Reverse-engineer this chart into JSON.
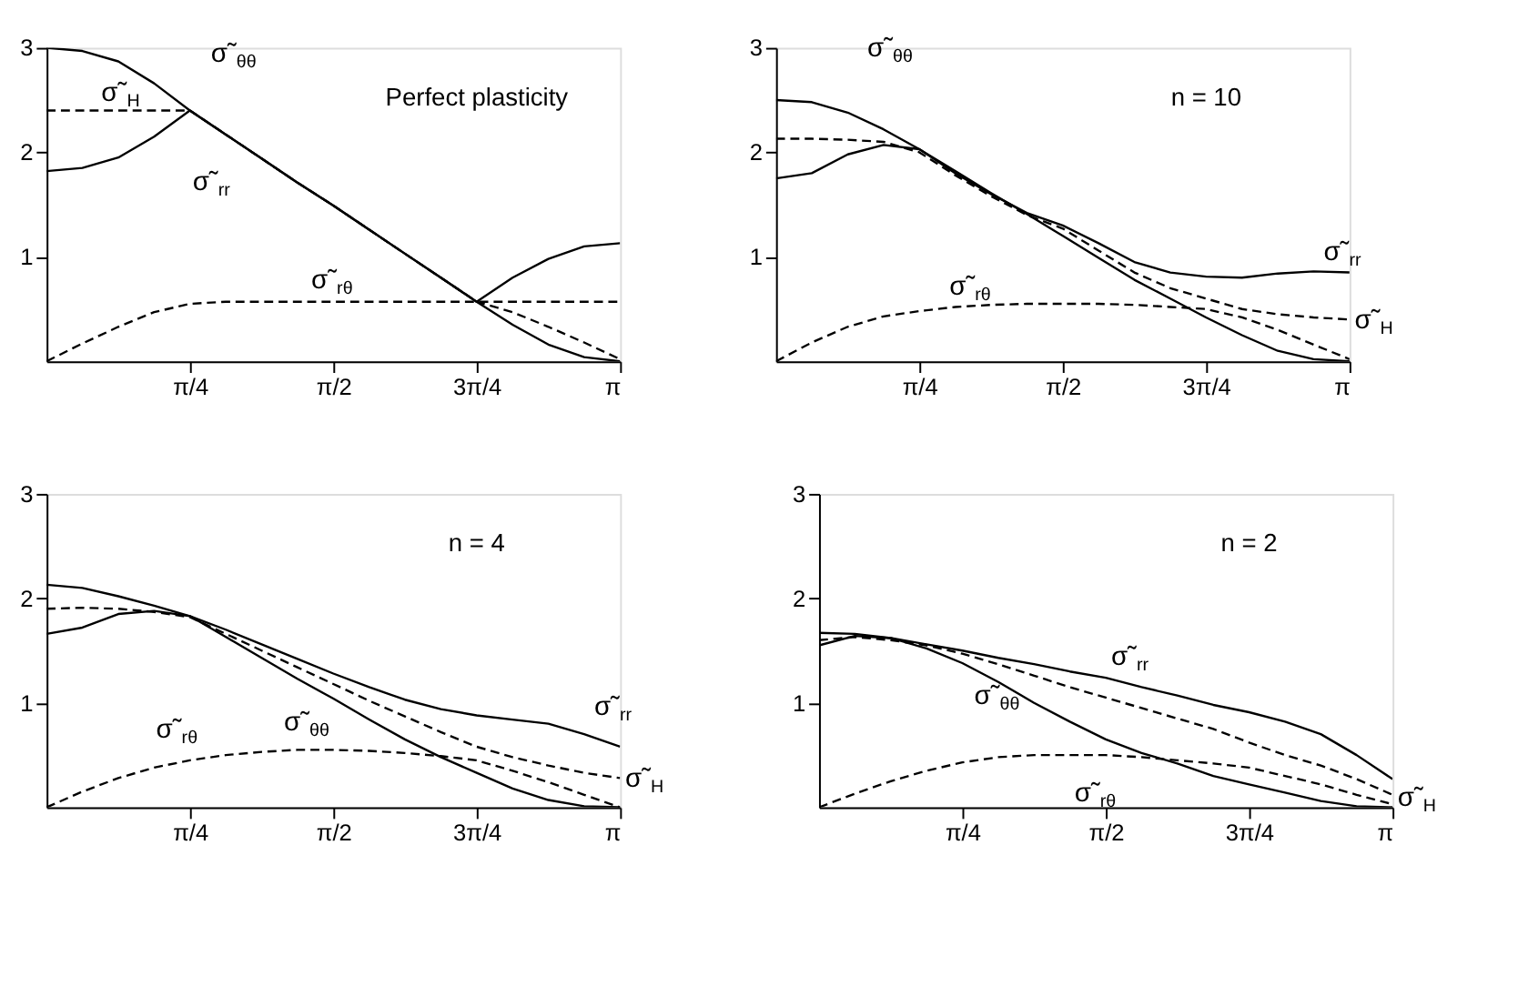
{
  "chart_data": [
    {
      "type": "line",
      "x": [
        0,
        0.196,
        0.393,
        0.589,
        0.785,
        0.982,
        1.178,
        1.374,
        1.571,
        1.767,
        1.963,
        2.16,
        2.356,
        2.553,
        2.749,
        2.945,
        3.142
      ],
      "xlim": [
        0,
        3.142
      ],
      "ylim": [
        0,
        3
      ],
      "xticks": [
        {
          "value": 0.785,
          "label": "π/4"
        },
        {
          "value": 1.571,
          "label": "π/2"
        },
        {
          "value": 2.356,
          "label": "3π/4"
        },
        {
          "value": 3.142,
          "label": "π"
        }
      ],
      "yticks": [
        1,
        2,
        3
      ],
      "grid": false,
      "annotations": [
        "Perfect plasticity"
      ],
      "series": [
        {
          "name": "σ̃$_{θθ}$",
          "color": "#000000",
          "line_style": "solid",
          "values": [
            3.0,
            2.97,
            2.87,
            2.66,
            2.4,
            2.17,
            1.94,
            1.71,
            1.49,
            1.26,
            1.03,
            0.8,
            0.57,
            0.35,
            0.16,
            0.04,
            0.0
          ]
        },
        {
          "name": "σ̃$_{rr}$",
          "color": "#000000",
          "line_style": "solid",
          "values": [
            1.82,
            1.85,
            1.95,
            2.15,
            2.4,
            2.17,
            1.94,
            1.71,
            1.49,
            1.26,
            1.03,
            0.8,
            0.57,
            0.8,
            0.98,
            1.1,
            1.13
          ]
        },
        {
          "name": "σ̃$_{H}$",
          "color": "#000000",
          "line_style": "dashed",
          "values": [
            2.4,
            2.4,
            2.4,
            2.4,
            2.4,
            2.17,
            1.94,
            1.71,
            1.49,
            1.26,
            1.03,
            0.8,
            0.57,
            0.47,
            0.33,
            0.18,
            0.02
          ]
        },
        {
          "name": "σ̃$_{rθ}$",
          "color": "#000000",
          "line_style": "dashed",
          "values": [
            0,
            0.17,
            0.33,
            0.47,
            0.55,
            0.57,
            0.57,
            0.57,
            0.57,
            0.57,
            0.57,
            0.57,
            0.57,
            0.57,
            0.57,
            0.57,
            0.57
          ]
        }
      ]
    },
    {
      "type": "line",
      "x": [
        0,
        0.196,
        0.393,
        0.589,
        0.785,
        0.982,
        1.178,
        1.374,
        1.571,
        1.767,
        1.963,
        2.16,
        2.356,
        2.553,
        2.749,
        2.945,
        3.142
      ],
      "xlim": [
        0,
        3.142
      ],
      "ylim": [
        0,
        3
      ],
      "xticks": [
        {
          "value": 0.785,
          "label": "π/4"
        },
        {
          "value": 1.571,
          "label": "π/2"
        },
        {
          "value": 2.356,
          "label": "3π/4"
        },
        {
          "value": 3.142,
          "label": "π"
        }
      ],
      "yticks": [
        1,
        2,
        3
      ],
      "grid": false,
      "annotations": [
        "n = 10"
      ],
      "series": [
        {
          "name": "σ̃$_{θθ}$",
          "color": "#000000",
          "line_style": "solid",
          "values": [
            2.5,
            2.48,
            2.38,
            2.22,
            2.03,
            1.82,
            1.61,
            1.41,
            1.2,
            0.99,
            0.78,
            0.6,
            0.42,
            0.25,
            0.1,
            0.02,
            0.0
          ]
        },
        {
          "name": "σ̃$_{rr}$",
          "color": "#000000",
          "line_style": "solid",
          "values": [
            1.75,
            1.8,
            1.98,
            2.07,
            2.03,
            1.8,
            1.6,
            1.42,
            1.3,
            1.13,
            0.95,
            0.85,
            0.81,
            0.8,
            0.84,
            0.86,
            0.85
          ]
        },
        {
          "name": "σ̃$_{H}$",
          "color": "#000000",
          "line_style": "dashed",
          "values": [
            2.13,
            2.13,
            2.12,
            2.1,
            2.0,
            1.78,
            1.58,
            1.4,
            1.27,
            1.06,
            0.85,
            0.7,
            0.6,
            0.5,
            0.45,
            0.42,
            0.4
          ]
        },
        {
          "name": "σ̃$_{rθ}$",
          "color": "#000000",
          "line_style": "dashed",
          "values": [
            0,
            0.18,
            0.33,
            0.43,
            0.48,
            0.52,
            0.54,
            0.55,
            0.55,
            0.55,
            0.54,
            0.52,
            0.5,
            0.42,
            0.3,
            0.16,
            0.02
          ]
        }
      ]
    },
    {
      "type": "line",
      "x": [
        0,
        0.196,
        0.393,
        0.589,
        0.785,
        0.982,
        1.178,
        1.374,
        1.571,
        1.767,
        1.963,
        2.16,
        2.356,
        2.553,
        2.749,
        2.945,
        3.142
      ],
      "xlim": [
        0,
        3.142
      ],
      "ylim": [
        0,
        3
      ],
      "xticks": [
        {
          "value": 0.785,
          "label": "π/4"
        },
        {
          "value": 1.571,
          "label": "π/2"
        },
        {
          "value": 2.356,
          "label": "3π/4"
        },
        {
          "value": 3.142,
          "label": "π"
        }
      ],
      "yticks": [
        1,
        2,
        3
      ],
      "grid": false,
      "annotations": [
        "n = 4"
      ],
      "series": [
        {
          "name": "σ̃$_{θθ}$",
          "color": "#000000",
          "line_style": "solid",
          "values": [
            2.13,
            2.1,
            2.02,
            1.93,
            1.83,
            1.63,
            1.43,
            1.23,
            1.04,
            0.84,
            0.65,
            0.48,
            0.33,
            0.18,
            0.07,
            0.01,
            0.0
          ]
        },
        {
          "name": "σ̃$_{rr}$",
          "color": "#000000",
          "line_style": "solid",
          "values": [
            1.66,
            1.72,
            1.85,
            1.88,
            1.83,
            1.7,
            1.56,
            1.42,
            1.28,
            1.15,
            1.03,
            0.94,
            0.88,
            0.84,
            0.8,
            0.7,
            0.58
          ]
        },
        {
          "name": "σ̃$_{H}$",
          "color": "#000000",
          "line_style": "dashed",
          "values": [
            1.9,
            1.91,
            1.9,
            1.87,
            1.82,
            1.66,
            1.5,
            1.34,
            1.18,
            1.02,
            0.87,
            0.72,
            0.58,
            0.48,
            0.4,
            0.33,
            0.28
          ]
        },
        {
          "name": "σ̃$_{rθ}$",
          "color": "#000000",
          "line_style": "dashed",
          "values": [
            0,
            0.15,
            0.28,
            0.38,
            0.45,
            0.5,
            0.53,
            0.55,
            0.55,
            0.54,
            0.52,
            0.49,
            0.45,
            0.35,
            0.24,
            0.12,
            0.0
          ]
        }
      ]
    },
    {
      "type": "line",
      "x": [
        0,
        0.196,
        0.393,
        0.589,
        0.785,
        0.982,
        1.178,
        1.374,
        1.571,
        1.767,
        1.963,
        2.16,
        2.356,
        2.553,
        2.749,
        2.945,
        3.142
      ],
      "xlim": [
        0,
        3.142
      ],
      "ylim": [
        0,
        3
      ],
      "xticks": [
        {
          "value": 0.785,
          "label": "π/4"
        },
        {
          "value": 1.571,
          "label": "π/2"
        },
        {
          "value": 2.356,
          "label": "3π/4"
        },
        {
          "value": 3.142,
          "label": "π"
        }
      ],
      "yticks": [
        1,
        2,
        3
      ],
      "grid": false,
      "annotations": [
        "n = 2"
      ],
      "series": [
        {
          "name": "σ̃$_{θθ}$",
          "color": "#000000",
          "line_style": "solid",
          "values": [
            1.55,
            1.64,
            1.62,
            1.52,
            1.38,
            1.2,
            1.0,
            0.82,
            0.65,
            0.52,
            0.42,
            0.3,
            0.22,
            0.14,
            0.06,
            0.01,
            0.0
          ]
        },
        {
          "name": "σ̃$_{rr}$",
          "color": "#000000",
          "line_style": "solid",
          "values": [
            1.67,
            1.66,
            1.62,
            1.56,
            1.5,
            1.43,
            1.37,
            1.3,
            1.24,
            1.15,
            1.07,
            0.98,
            0.91,
            0.82,
            0.7,
            0.5,
            0.27
          ]
        },
        {
          "name": "σ̃$_{H}$",
          "color": "#000000",
          "line_style": "dashed",
          "values": [
            1.6,
            1.63,
            1.6,
            1.55,
            1.47,
            1.37,
            1.26,
            1.15,
            1.05,
            0.95,
            0.85,
            0.75,
            0.62,
            0.5,
            0.4,
            0.27,
            0.12
          ]
        },
        {
          "name": "σ̃$_{rθ}$",
          "color": "#000000",
          "line_style": "dashed",
          "values": [
            0,
            0.13,
            0.25,
            0.35,
            0.43,
            0.48,
            0.5,
            0.5,
            0.5,
            0.48,
            0.45,
            0.42,
            0.38,
            0.3,
            0.22,
            0.12,
            0.03
          ]
        }
      ]
    }
  ]
}
